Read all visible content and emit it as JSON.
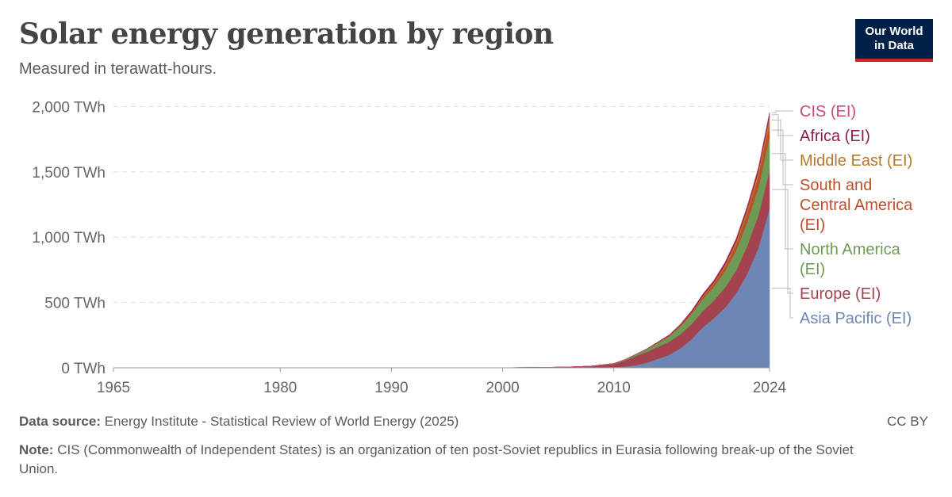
{
  "header": {
    "title": "Solar energy generation by region",
    "subtitle": "Measured in terawatt-hours.",
    "logo_line1": "Our World",
    "logo_line2": "in Data"
  },
  "footer": {
    "source_label": "Data source:",
    "source_text": "Energy Institute - Statistical Review of World Energy (2025)",
    "note_label": "Note:",
    "note_text": "CIS (Commonwealth of Independent States) is an organization of ten post-Soviet republics in Eurasia following break-up of the Soviet Union.",
    "license": "CC BY"
  },
  "chart_data": {
    "type": "area",
    "stacked": true,
    "title": "Solar energy generation by region",
    "subtitle": "Measured in terawatt-hours.",
    "xlabel": "",
    "ylabel": "",
    "xlim": [
      1965,
      2024
    ],
    "ylim": [
      0,
      2100
    ],
    "x_ticks": [
      1965,
      1980,
      1990,
      2000,
      2010,
      2024
    ],
    "y_ticks": [
      {
        "value": 0,
        "label": "0 TWh"
      },
      {
        "value": 500,
        "label": "500 TWh"
      },
      {
        "value": 1000,
        "label": "1,000 TWh"
      },
      {
        "value": 1500,
        "label": "1,500 TWh"
      },
      {
        "value": 2000,
        "label": "2,000 TWh"
      }
    ],
    "grid": true,
    "legend": "right-labels",
    "x": [
      1965,
      1970,
      1975,
      1980,
      1985,
      1990,
      1995,
      2000,
      2002,
      2004,
      2006,
      2008,
      2010,
      2011,
      2012,
      2013,
      2014,
      2015,
      2016,
      2017,
      2018,
      2019,
      2020,
      2021,
      2022,
      2023,
      2024
    ],
    "series": [
      {
        "name": "Asia Pacific (EI)",
        "color": "#6d86b3",
        "values": [
          0,
          0,
          0,
          0,
          0,
          0,
          0,
          0.5,
          1,
          2,
          3,
          4,
          6,
          10,
          20,
          40,
          70,
          100,
          150,
          220,
          310,
          380,
          460,
          570,
          720,
          920,
          1220
        ]
      },
      {
        "name": "Europe (EI)",
        "color": "#a2434f",
        "values": [
          0,
          0,
          0,
          0,
          0,
          0,
          0,
          0.1,
          0.5,
          1,
          3,
          8,
          23,
          46,
          71,
          82,
          92,
          100,
          108,
          115,
          125,
          135,
          155,
          175,
          215,
          250,
          290
        ]
      },
      {
        "name": "North America (EI)",
        "color": "#6e9a55",
        "values": [
          0,
          0,
          0,
          0,
          0,
          0,
          0,
          0.5,
          0.6,
          0.7,
          1,
          1.5,
          4,
          7,
          12,
          21,
          31,
          42,
          60,
          77,
          92,
          105,
          125,
          155,
          185,
          210,
          260
        ]
      },
      {
        "name": "South and Central America (EI)",
        "color": "#be4e2a",
        "values": [
          0,
          0,
          0,
          0,
          0,
          0,
          0,
          0,
          0,
          0,
          0,
          0,
          0.1,
          0.2,
          0.5,
          1,
          1.5,
          3,
          5,
          10,
          16,
          22,
          31,
          43,
          63,
          83,
          100
        ]
      },
      {
        "name": "Middle East (EI)",
        "color": "#b8782a",
        "values": [
          0,
          0,
          0,
          0,
          0,
          0,
          0,
          0,
          0,
          0,
          0,
          0,
          0,
          0.2,
          0.5,
          1,
          1.5,
          2,
          3,
          5,
          8,
          12,
          18,
          25,
          32,
          42,
          55
        ]
      },
      {
        "name": "Africa (EI)",
        "color": "#8c1f52",
        "values": [
          0,
          0,
          0,
          0,
          0,
          0,
          0,
          0,
          0,
          0,
          0,
          0,
          0.1,
          0.3,
          1,
          2,
          4,
          6,
          8,
          10,
          12,
          14,
          16,
          18,
          20,
          22,
          25
        ]
      },
      {
        "name": "CIS (EI)",
        "color": "#d0467a",
        "values": [
          0,
          0,
          0,
          0,
          0,
          0,
          0,
          0,
          0,
          0,
          0,
          0,
          0,
          0,
          0,
          0,
          0.5,
          1,
          1.5,
          2,
          2.5,
          3,
          4,
          4.5,
          5,
          6,
          7
        ]
      }
    ],
    "legend_order": [
      "CIS (EI)",
      "Africa (EI)",
      "Middle East (EI)",
      "South and Central America (EI)",
      "North America (EI)",
      "Europe (EI)",
      "Asia Pacific (EI)"
    ],
    "legend_labels": [
      {
        "name": "CIS (EI)",
        "lines": [
          "CIS (EI)"
        ],
        "color": "#d0467a"
      },
      {
        "name": "Africa (EI)",
        "lines": [
          "Africa (EI)"
        ],
        "color": "#8c1f52"
      },
      {
        "name": "Middle East (EI)",
        "lines": [
          "Middle East (EI)"
        ],
        "color": "#b8782a"
      },
      {
        "name": "South and Central America (EI)",
        "lines": [
          "South and",
          "Central America",
          "(EI)"
        ],
        "color": "#be4e2a"
      },
      {
        "name": "North America (EI)",
        "lines": [
          "North America",
          "(EI)"
        ],
        "color": "#6e9a55"
      },
      {
        "name": "Europe (EI)",
        "lines": [
          "Europe (EI)"
        ],
        "color": "#a2434f"
      },
      {
        "name": "Asia Pacific (EI)",
        "lines": [
          "Asia Pacific (EI)"
        ],
        "color": "#6d86b3"
      }
    ]
  }
}
